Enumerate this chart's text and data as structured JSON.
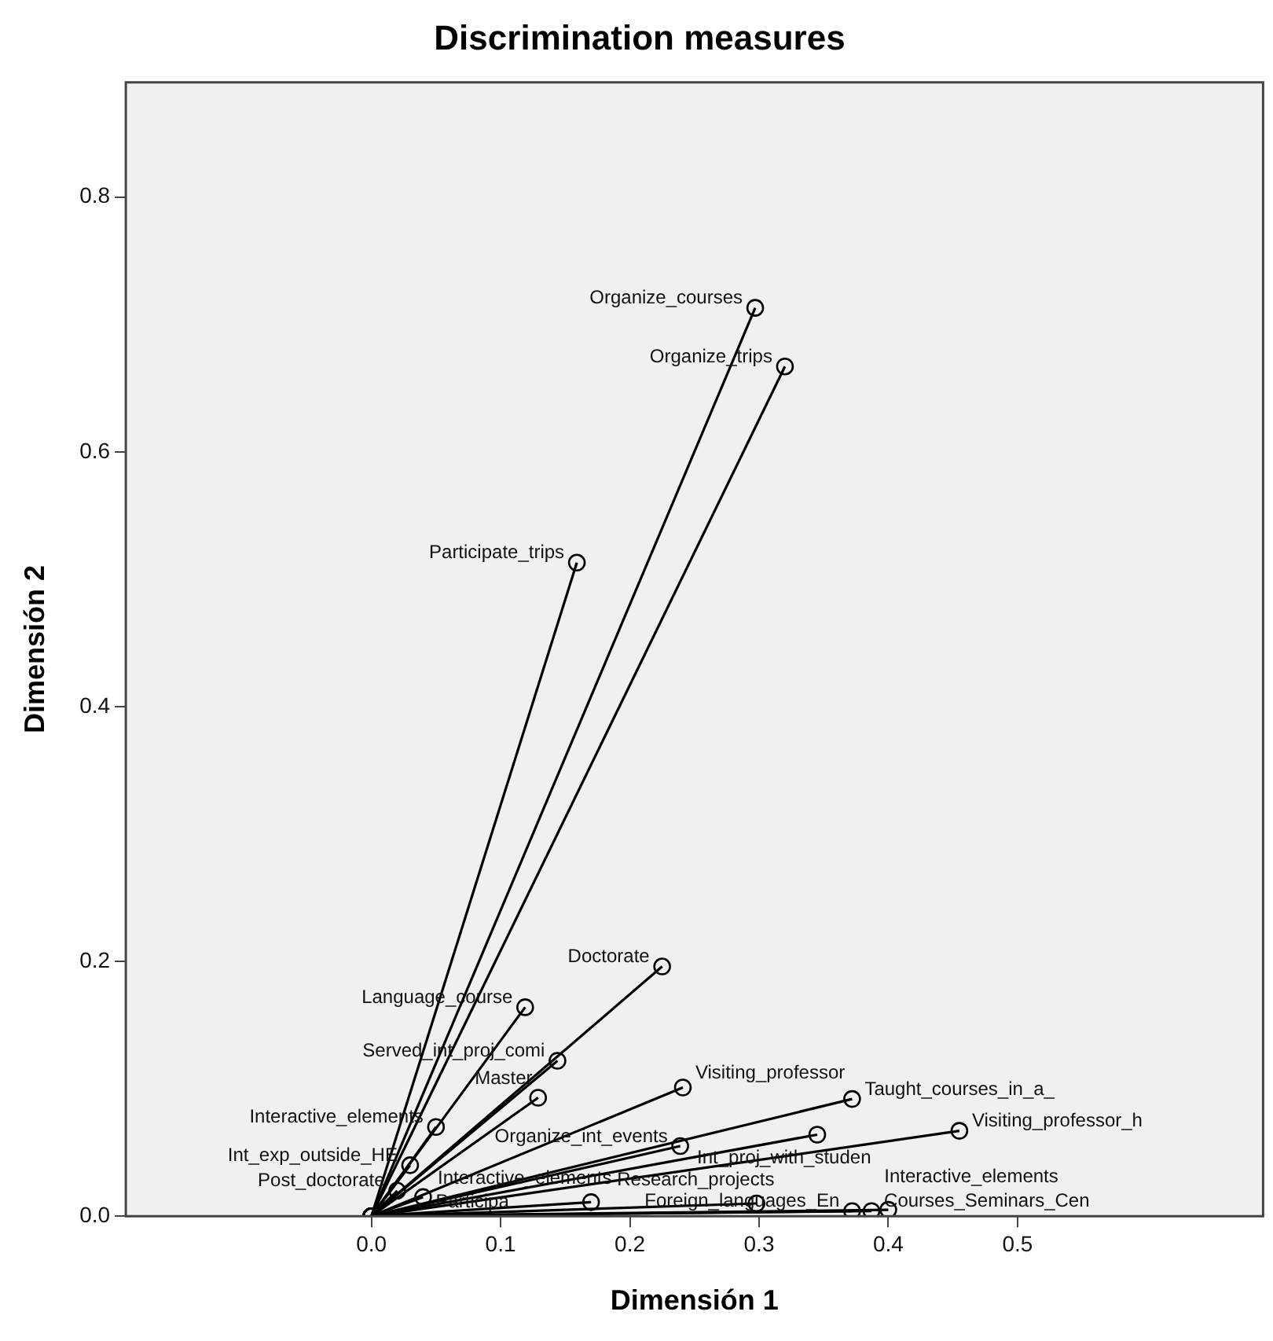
{
  "chart_data": {
    "type": "line",
    "title": "Discrimination measures",
    "xlabel": "Dimensión 1",
    "ylabel": "Dimensión 2",
    "series": [
      {
        "color": "#000000",
        "x": [
          0,
          0.297
        ],
        "values": [
          0,
          0.713
        ],
        "value_labels": [
          null,
          "Organize_courses"
        ]
      },
      {
        "color": "#000000",
        "x": [
          0,
          0.32
        ],
        "values": [
          0,
          0.667
        ],
        "value_labels": [
          null,
          "Organize_trips"
        ]
      },
      {
        "color": "#000000",
        "x": [
          0,
          0.159
        ],
        "values": [
          0,
          0.513
        ],
        "value_labels": [
          null,
          "Participate_trips"
        ]
      },
      {
        "color": "#000000",
        "x": [
          0,
          0.225
        ],
        "values": [
          0,
          0.196
        ],
        "value_labels": [
          null,
          "Doctorate"
        ]
      },
      {
        "color": "#000000",
        "x": [
          0,
          0.119
        ],
        "values": [
          0,
          0.164
        ],
        "value_labels": [
          null,
          "Language_course"
        ]
      },
      {
        "color": "#000000",
        "x": [
          0,
          0.144
        ],
        "values": [
          0,
          0.122
        ],
        "value_labels": [
          null,
          "Served_int_proj_comi"
        ]
      },
      {
        "color": "#000000",
        "x": [
          0,
          0.241
        ],
        "values": [
          0,
          0.101
        ],
        "value_labels": [
          null,
          "Visiting_professor"
        ]
      },
      {
        "color": "#000000",
        "x": [
          0,
          0.129
        ],
        "values": [
          0,
          0.093
        ],
        "value_labels": [
          null,
          "Master"
        ]
      },
      {
        "color": "#000000",
        "x": [
          0,
          0.372
        ],
        "values": [
          0,
          0.092
        ],
        "value_labels": [
          null,
          "Taught_courses_in_a_"
        ]
      },
      {
        "color": "#000000",
        "x": [
          0,
          0.345
        ],
        "values": [
          0,
          0.064
        ],
        "value_labels": [
          null,
          "Int_proj_with_studen"
        ]
      },
      {
        "color": "#000000",
        "x": [
          0,
          0.455
        ],
        "values": [
          0,
          0.067
        ],
        "value_labels": [
          null,
          "Visiting_professor_h"
        ]
      },
      {
        "color": "#000000",
        "x": [
          0,
          0.239
        ],
        "values": [
          0,
          0.055
        ],
        "value_labels": [
          null,
          "Organize_int_events"
        ]
      },
      {
        "color": "#000000",
        "x": [
          0,
          0.17
        ],
        "values": [
          0,
          0.011
        ],
        "value_labels": [
          null,
          "Interactive_elements"
        ]
      },
      {
        "color": "#000000",
        "x": [
          0,
          0.298
        ],
        "values": [
          0,
          0.01
        ],
        "value_labels": [
          null,
          "Research_projects"
        ]
      },
      {
        "color": "#000000",
        "x": [
          0,
          0.372
        ],
        "values": [
          0,
          0.004
        ],
        "value_labels": [
          null,
          "Foreign_languages_En"
        ]
      },
      {
        "color": "#000000",
        "x": [
          0,
          0.387
        ],
        "values": [
          0,
          0.004
        ],
        "value_labels": [
          null,
          "Courses_Seminars_Cen"
        ]
      },
      {
        "color": "#000000",
        "x": [
          0,
          0.4
        ],
        "values": [
          0,
          0.005
        ],
        "value_labels": [
          null,
          "Interactive_elements"
        ]
      },
      {
        "color": "#000000",
        "x": [
          0,
          0.03
        ],
        "values": [
          0,
          0.04
        ],
        "value_labels": [
          null,
          "Int_exp_outside_HE"
        ]
      },
      {
        "color": "#000000",
        "x": [
          0,
          0.05
        ],
        "values": [
          0,
          0.07
        ],
        "value_labels": [
          null,
          "Interactive_elements"
        ]
      },
      {
        "color": "#000000",
        "x": [
          0,
          0.02
        ],
        "values": [
          0,
          0.02
        ],
        "value_labels": [
          null,
          "Post_doctorate"
        ]
      },
      {
        "color": "#000000",
        "x": [
          0,
          0.04
        ],
        "values": [
          0,
          0.015
        ],
        "value_labels": [
          null,
          "Participa"
        ]
      }
    ],
    "marker": "circle",
    "line_style": "solid",
    "xlim": [
      -0.19,
      0.69
    ],
    "xticks": [
      {
        "value": 0,
        "label": "0.0"
      },
      {
        "value": 0.1,
        "label": "0.1"
      },
      {
        "value": 0.2,
        "label": "0.2"
      },
      {
        "value": 0.3,
        "label": "0.3"
      },
      {
        "value": 0.4,
        "label": "0.4"
      },
      {
        "value": 0.5,
        "label": "0.5"
      }
    ],
    "ylim": [
      0,
      0.89
    ],
    "yticks": [
      {
        "value": 0,
        "label": "0.0"
      },
      {
        "value": 0.2,
        "label": "0.2"
      },
      {
        "value": 0.4,
        "label": "0.4"
      },
      {
        "value": 0.6,
        "label": "0.6"
      },
      {
        "value": 0.8,
        "label": "0.8"
      }
    ],
    "grid": false,
    "legend": false
  }
}
